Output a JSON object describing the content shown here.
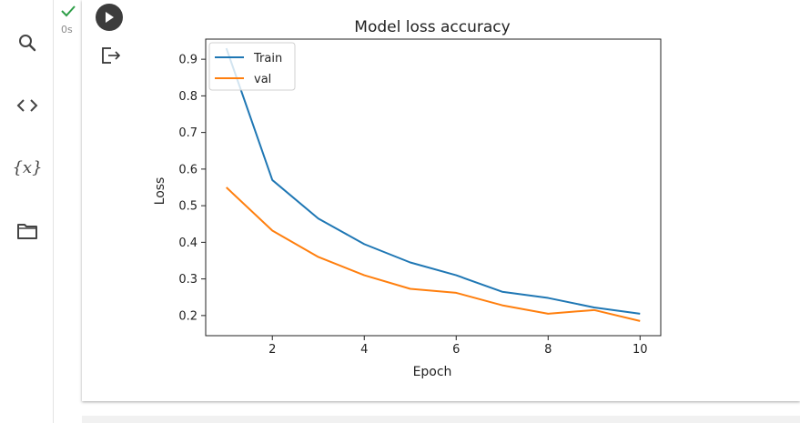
{
  "sidebar": {
    "items": [
      {
        "icon": "search-icon"
      },
      {
        "icon": "code-icon"
      },
      {
        "icon": "variables-icon",
        "label": "{x}"
      },
      {
        "icon": "folder-icon"
      }
    ]
  },
  "cell": {
    "status_icon": "check-icon",
    "exec_time": "0s",
    "run_icon": "play-icon",
    "output_icon": "output-exit-icon"
  },
  "colors": {
    "train": "#1f77b4",
    "val": "#ff7f0e",
    "check": "#2e9e48"
  },
  "chart_data": {
    "type": "line",
    "title": "Model loss accuracy",
    "xlabel": "Epoch",
    "ylabel": "Loss",
    "xlim": [
      0.55,
      10.45
    ],
    "ylim": [
      0.145,
      0.955
    ],
    "xticks": [
      2,
      4,
      6,
      8,
      10
    ],
    "yticks": [
      0.2,
      0.3,
      0.4,
      0.5,
      0.6,
      0.7,
      0.8,
      0.9
    ],
    "xtick_labels": [
      "2",
      "4",
      "6",
      "8",
      "10"
    ],
    "ytick_labels": [
      "0.2",
      "0.3",
      "0.4",
      "0.5",
      "0.6",
      "0.7",
      "0.8",
      "0.9"
    ],
    "grid": false,
    "legend_position": "top-left",
    "x": [
      1,
      2,
      3,
      4,
      5,
      6,
      7,
      8,
      9,
      10
    ],
    "series": [
      {
        "name": "Train",
        "values": [
          0.93,
          0.57,
          0.465,
          0.395,
          0.345,
          0.31,
          0.265,
          0.248,
          0.222,
          0.205
        ]
      },
      {
        "name": "val",
        "values": [
          0.55,
          0.432,
          0.36,
          0.31,
          0.273,
          0.262,
          0.228,
          0.205,
          0.215,
          0.185
        ]
      }
    ]
  }
}
